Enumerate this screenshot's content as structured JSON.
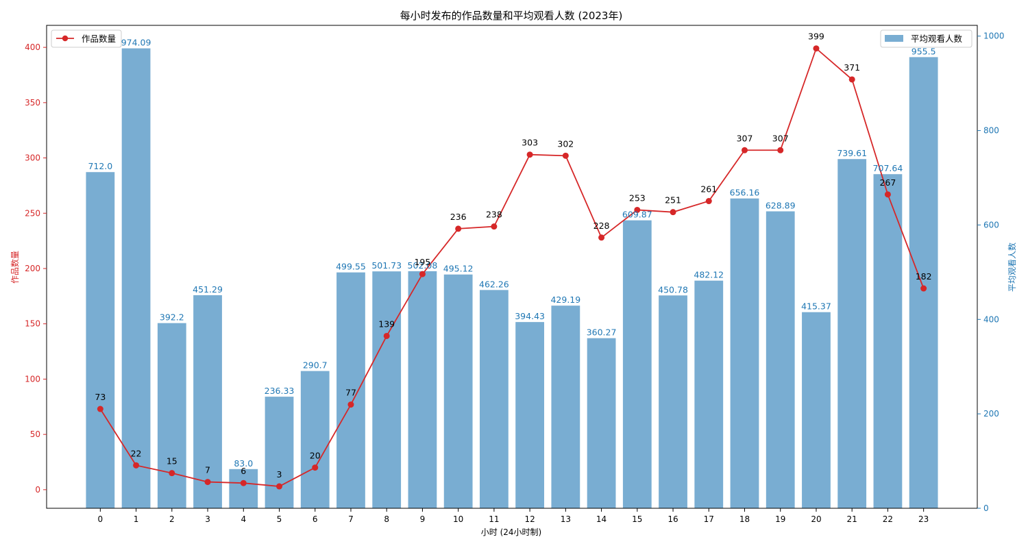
{
  "chart_data": {
    "type": "bar",
    "title": "每小时发布的作品数量和平均观看人数 (2023年)",
    "xlabel": "小时 (24小时制)",
    "ylabel_left": "作品数量",
    "ylabel_right": "平均观看人数",
    "categories": [
      "0",
      "1",
      "2",
      "3",
      "4",
      "5",
      "6",
      "7",
      "8",
      "9",
      "10",
      "11",
      "12",
      "13",
      "14",
      "15",
      "16",
      "17",
      "18",
      "19",
      "20",
      "21",
      "22",
      "23"
    ],
    "series": [
      {
        "name": "平均观看人数",
        "type": "bar",
        "axis": "right",
        "color": "#1f77b4",
        "values": [
          712.0,
          974.09,
          392.2,
          451.29,
          83.0,
          236.33,
          290.7,
          499.55,
          501.73,
          502.08,
          495.12,
          462.26,
          394.43,
          429.19,
          360.27,
          609.87,
          450.78,
          482.12,
          656.16,
          628.89,
          415.37,
          739.61,
          707.64,
          955.5
        ],
        "labels": [
          "712.0",
          "974.09",
          "392.2",
          "451.29",
          "83.0",
          "236.33",
          "290.7",
          "499.55",
          "501.73",
          "502.08",
          "495.12",
          "462.26",
          "394.43",
          "429.19",
          "360.27",
          "609.87",
          "450.78",
          "482.12",
          "656.16",
          "628.89",
          "415.37",
          "739.61",
          "707.64",
          "955.5"
        ]
      },
      {
        "name": "作品数量",
        "type": "line",
        "axis": "left",
        "color": "#d62728",
        "values": [
          73,
          22,
          15,
          7,
          6,
          3,
          20,
          77,
          139,
          195,
          236,
          238,
          303,
          302,
          228,
          253,
          251,
          261,
          307,
          307,
          399,
          371,
          267,
          182
        ],
        "labels": [
          "73",
          "22",
          "15",
          "7",
          "6",
          "3",
          "20",
          "77",
          "139",
          "195",
          "236",
          "238",
          "303",
          "302",
          "228",
          "253",
          "251",
          "261",
          "307",
          "307",
          "399",
          "371",
          "267",
          "182"
        ]
      }
    ],
    "ylim_left": [
      -16.8,
      419.9
    ],
    "yticks_left": [
      "0",
      "50",
      "100",
      "150",
      "200",
      "250",
      "300",
      "350",
      "400"
    ],
    "ylim_right": [
      0,
      1022.8
    ],
    "yticks_right": [
      "0",
      "200",
      "400",
      "600",
      "800",
      "1000"
    ],
    "xlim": [
      -1.5,
      24.5
    ],
    "grid": false,
    "legend_line_position": "upper-left",
    "legend_bar_position": "upper-right",
    "left_axis_color": "#d62728",
    "right_axis_color": "#1f77b4"
  }
}
